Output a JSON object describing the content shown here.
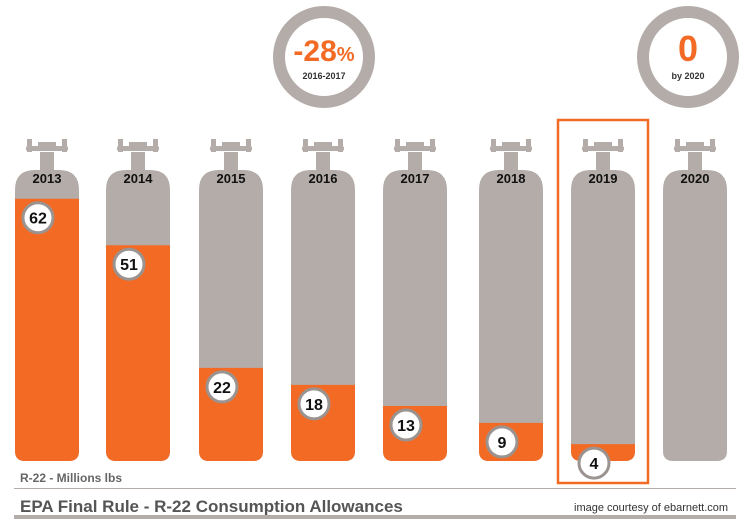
{
  "chart_data": {
    "type": "bar",
    "title": "EPA Final Rule - R-22 Consumption Allowances",
    "ylabel": "R-22 - Millions lbs",
    "categories": [
      "2013",
      "2014",
      "2015",
      "2016",
      "2017",
      "2018",
      "2019",
      "2020"
    ],
    "values": [
      62,
      51,
      22,
      18,
      13,
      9,
      4,
      0
    ],
    "value_labels": [
      "62",
      "51",
      "22",
      "18",
      "13",
      "9",
      "4",
      ""
    ],
    "ylim": [
      0,
      65
    ],
    "highlighted_category": "2019",
    "annotations": [
      {
        "big": "-28",
        "suffix": "%",
        "small": "2016-2017",
        "anchor": "2016-2017"
      },
      {
        "big": "0",
        "suffix": "",
        "small": "by 2020",
        "anchor": "2020"
      }
    ]
  },
  "footer": {
    "unit_label": "R-22 - Millions lbs",
    "credit": "image courtesy of ebarnett.com"
  },
  "colors": {
    "fill": "#f26a24",
    "cylinder": "#b4aca9",
    "highlight": "#f26a24",
    "text": "#111111"
  }
}
